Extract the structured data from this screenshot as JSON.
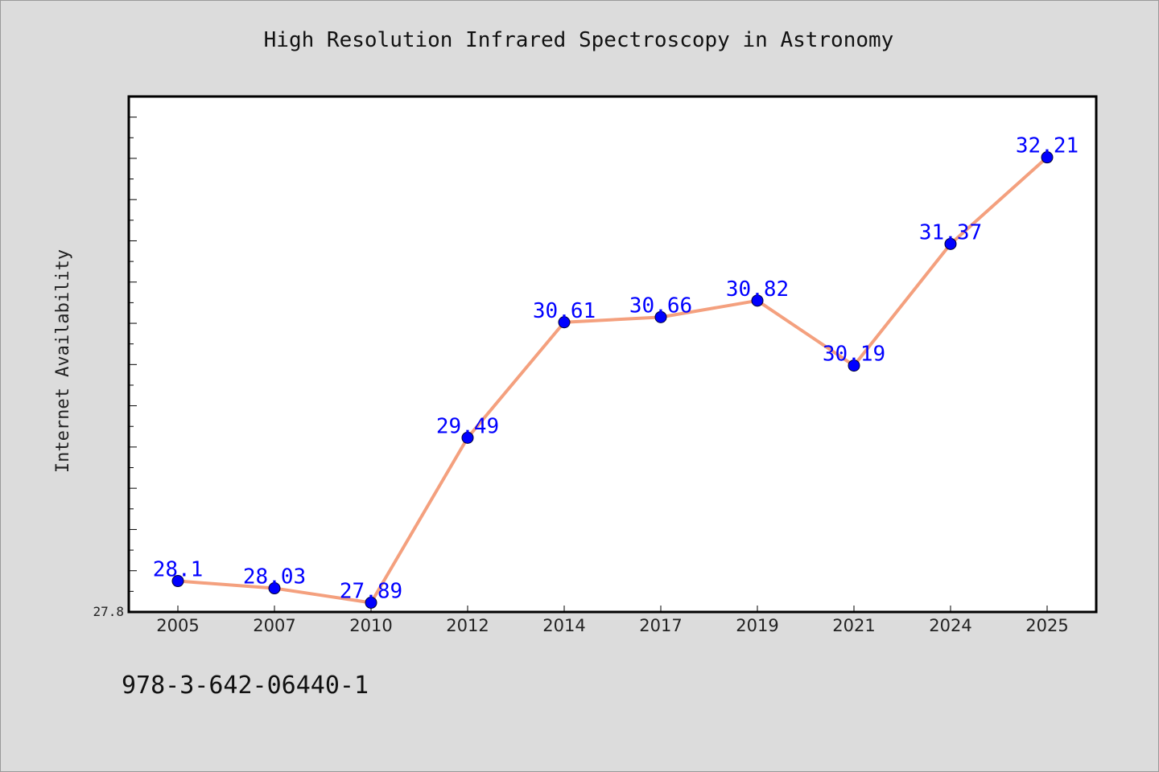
{
  "chart_data": {
    "type": "line",
    "title": "High Resolution Infrared Spectroscopy in Astronomy",
    "xlabel": "",
    "ylabel": "Internet Availability",
    "categories": [
      "2005",
      "2007",
      "2010",
      "2012",
      "2014",
      "2017",
      "2019",
      "2021",
      "2024",
      "2025"
    ],
    "series": [
      {
        "values": [
          28.1,
          28.03,
          27.89,
          29.49,
          30.61,
          30.66,
          30.82,
          30.19,
          31.37,
          32.21
        ],
        "labels": [
          "28.1",
          "28.03",
          "27.89",
          "29.49",
          "30.61",
          "30.66",
          "30.82",
          "30.19",
          "31.37",
          "32.21"
        ],
        "line_color": "#f4a07e",
        "marker_color": "#0000ff",
        "label_color": "#0000ff"
      }
    ],
    "ylim": [
      27.8,
      32.8
    ],
    "y_tick_labels": [
      "27.8"
    ],
    "grid": false,
    "legend": "none"
  },
  "footer": {
    "note": "978-3-642-06440-1"
  }
}
